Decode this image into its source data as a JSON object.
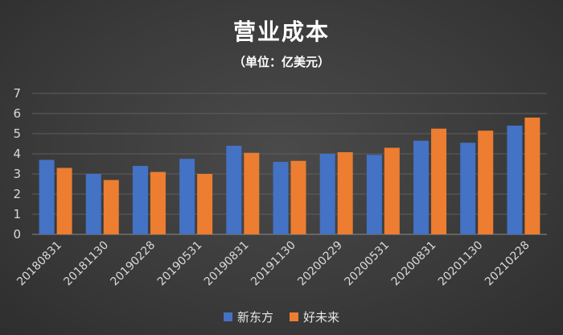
{
  "chart_data": {
    "type": "bar",
    "title": "营业成本",
    "subtitle": "（单位：亿美元）",
    "categories": [
      "20180831",
      "20181130",
      "20190228",
      "20190531",
      "20190831",
      "20191130",
      "20200229",
      "20200531",
      "20200831",
      "20201130",
      "20210228"
    ],
    "series": [
      {
        "name": "新东方",
        "color": "#4472C4",
        "values": [
          3.7,
          3.0,
          3.4,
          3.75,
          4.4,
          3.6,
          4.0,
          3.95,
          4.65,
          4.55,
          5.4
        ]
      },
      {
        "name": "好未来",
        "color": "#ED7D31",
        "values": [
          3.3,
          2.7,
          3.1,
          3.0,
          4.05,
          3.65,
          4.08,
          4.3,
          5.25,
          5.15,
          5.8
        ]
      }
    ],
    "ylim": [
      0,
      7
    ],
    "yticks": [
      "0",
      "1",
      "2",
      "3",
      "4",
      "5",
      "6",
      "7"
    ],
    "grid": true,
    "legend_position": "bottom"
  }
}
